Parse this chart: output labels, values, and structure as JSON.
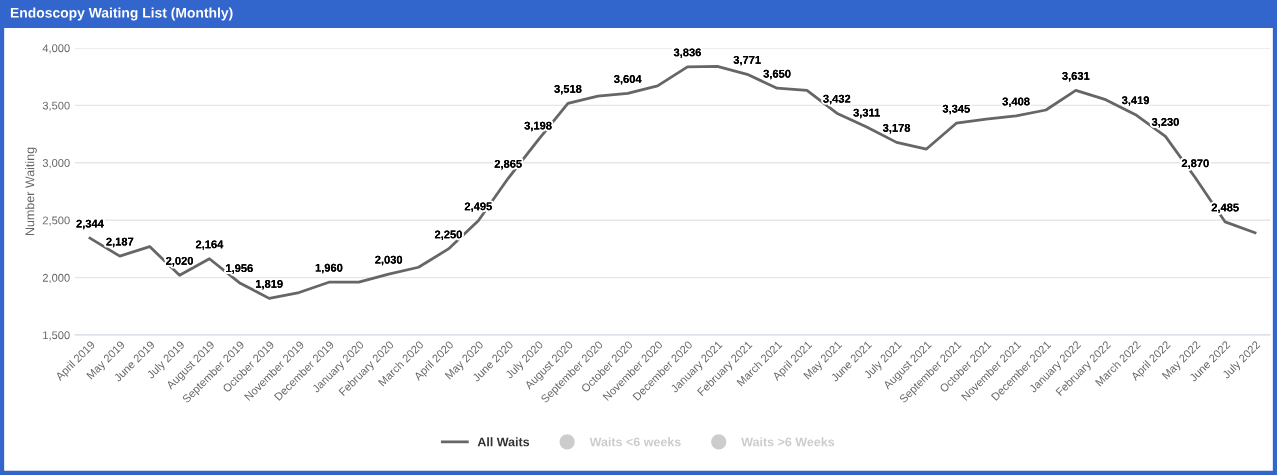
{
  "chart_data": {
    "type": "line",
    "title": "Endoscopy Waiting List (Monthly)",
    "ylabel": "Number Waiting",
    "categories": [
      "April 2019",
      "May 2019",
      "June 2019",
      "July 2019",
      "August 2019",
      "September 2019",
      "October 2019",
      "November 2019",
      "December 2019",
      "January 2020",
      "February 2020",
      "March 2020",
      "April 2020",
      "May 2020",
      "June 2020",
      "July 2020",
      "August 2020",
      "September 2020",
      "October 2020",
      "November 2020",
      "December 2020",
      "January 2021",
      "February 2021",
      "March 2021",
      "April 2021",
      "May 2021",
      "June 2021",
      "July 2021",
      "August 2021",
      "September 2021",
      "October 2021",
      "November 2021",
      "December 2021",
      "January 2022",
      "February 2022",
      "March 2022",
      "April 2022",
      "May 2022",
      "June 2022",
      "July 2022"
    ],
    "series": [
      {
        "name": "All Waits",
        "color": "#666666",
        "marker": "none",
        "values": [
          2344,
          2187,
          2270,
          2020,
          2164,
          1956,
          1819,
          1870,
          1960,
          1960,
          2030,
          2090,
          2250,
          2495,
          2865,
          3198,
          3518,
          3580,
          3604,
          3670,
          3836,
          3840,
          3771,
          3650,
          3630,
          3432,
          3311,
          3178,
          3120,
          3345,
          3380,
          3408,
          3460,
          3631,
          3550,
          3419,
          3230,
          2870,
          2485,
          2390
        ],
        "value_labels": [
          "2,344",
          "2,187",
          null,
          "2,020",
          "2,164",
          "1,956",
          "1,819",
          null,
          "1,960",
          null,
          "2,030",
          null,
          "2,250",
          "2,495",
          "2,865",
          "3,198",
          "3,518",
          null,
          "3,604",
          null,
          "3,836",
          null,
          "3,771",
          "3,650",
          null,
          "3,432",
          "3,311",
          "3,178",
          null,
          "3,345",
          null,
          "3,408",
          null,
          "3,631",
          null,
          "3,419",
          "3,230",
          "2,870",
          "2,485",
          null
        ]
      },
      {
        "name": "Waits <6 weeks",
        "color": "#cccccc",
        "marker": "circle",
        "values": [
          null,
          null,
          null,
          null,
          null,
          null,
          null,
          null,
          null,
          null,
          null,
          null,
          null,
          null,
          null,
          null,
          null,
          null,
          null,
          null,
          null,
          null,
          null,
          null,
          null,
          null,
          null,
          null,
          null,
          null,
          null,
          null,
          null,
          null,
          null,
          null,
          null,
          null,
          null,
          null
        ]
      },
      {
        "name": "Waits >6 Weeks",
        "color": "#cccccc",
        "marker": "circle",
        "values": [
          null,
          null,
          null,
          null,
          null,
          null,
          null,
          null,
          null,
          null,
          null,
          null,
          null,
          null,
          null,
          null,
          null,
          null,
          null,
          null,
          null,
          null,
          null,
          null,
          null,
          null,
          null,
          null,
          null,
          null,
          null,
          null,
          null,
          null,
          null,
          null,
          null,
          null,
          null,
          null
        ]
      }
    ],
    "ylim": [
      1500,
      4000
    ],
    "yticks": [
      {
        "value": 1500,
        "label": "1,500"
      },
      {
        "value": 2000,
        "label": "2,000"
      },
      {
        "value": 2500,
        "label": "2,500"
      },
      {
        "value": 3000,
        "label": "3,000"
      },
      {
        "value": 3500,
        "label": "3,500"
      },
      {
        "value": 4000,
        "label": "4,000"
      }
    ],
    "grid": "y",
    "legend": "bottom"
  }
}
